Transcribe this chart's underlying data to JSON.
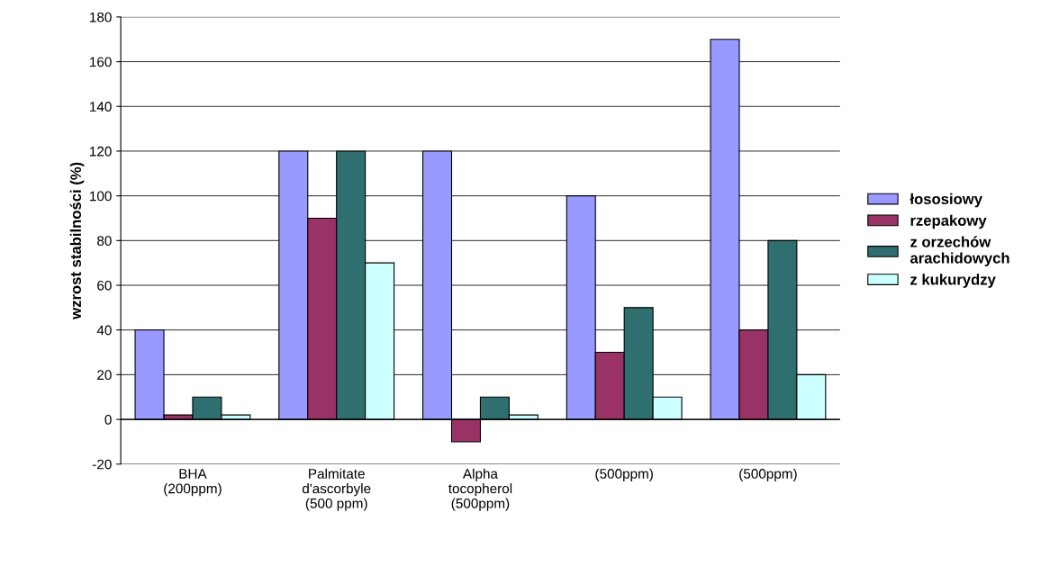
{
  "chart_data": {
    "type": "bar",
    "categories": [
      "BHA\n(200ppm)",
      "Palmitate\nd'ascorbyle\n(500 ppm)",
      "Alpha\ntocopherol\n(500ppm)",
      "(500ppm)",
      "(500ppm)"
    ],
    "series": [
      {
        "name": "łososiowy",
        "color": "#9999ff",
        "values": [
          40,
          120,
          120,
          100,
          170
        ]
      },
      {
        "name": "rzepakowy",
        "color": "#993366",
        "values": [
          2,
          90,
          -10,
          30,
          40
        ]
      },
      {
        "name": "z orzechów\narachidowych",
        "color": "#2f6f6f",
        "values": [
          10,
          120,
          10,
          50,
          80
        ]
      },
      {
        "name": "z kukurydzy",
        "color": "#ccffff",
        "values": [
          2,
          70,
          2,
          10,
          20
        ]
      }
    ],
    "ylabel": "wzrost stabilności (%)",
    "ylim": [
      -20,
      180
    ],
    "yticks": [
      -20,
      0,
      20,
      40,
      60,
      80,
      100,
      120,
      140,
      160,
      180
    ],
    "grid": "y",
    "legend": "right"
  }
}
